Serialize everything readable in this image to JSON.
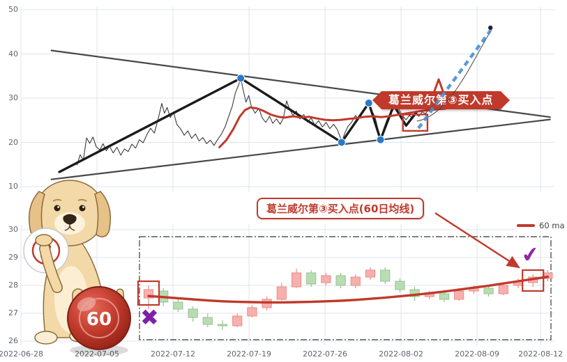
{
  "colors": {
    "accent_red": "#c0392b",
    "candle_up_fill": "#f6b0ae",
    "candle_up_stroke": "#ee8a86",
    "candle_down_fill": "#b9dcb4",
    "candle_down_stroke": "#95c48e",
    "grid": "#dde4ec",
    "price_line": "#3a3a3a",
    "swing_line": "#1b1b1b",
    "trend_line": "#474747",
    "ma_line": "#c0392b",
    "dot_blue": "#2979c8",
    "projection_blue": "#4a90d2",
    "purple": "#8e24aa",
    "axis_text": "#5c6670"
  },
  "x_axis": {
    "dates": [
      "2022-06-28",
      "2022-07-05",
      "2022-07-12",
      "2022-07-19",
      "2022-07-26",
      "2022-08-02",
      "2022-08-09",
      "2022-08-12"
    ]
  },
  "marks": {
    "x_glyph": "✖",
    "check_glyph": "✔"
  },
  "mascot": {
    "ball3_label": "3",
    "ball60_label": "60"
  },
  "chart_data": [
    {
      "type": "line",
      "y_ticks": [
        10,
        20,
        30,
        40,
        50
      ],
      "ylim": [
        8,
        52
      ],
      "banner_text": "葛兰威尔第③买入点",
      "series": [
        {
          "name": "price",
          "points": [
            [
              0.105,
              14.8
            ],
            [
              0.111,
              17.2
            ],
            [
              0.117,
              16.0
            ],
            [
              0.123,
              21.0
            ],
            [
              0.129,
              19.8
            ],
            [
              0.135,
              21.2
            ],
            [
              0.141,
              19.0
            ],
            [
              0.148,
              18.3
            ],
            [
              0.154,
              19.7
            ],
            [
              0.16,
              18.1
            ],
            [
              0.166,
              19.2
            ],
            [
              0.173,
              17.6
            ],
            [
              0.18,
              18.9
            ],
            [
              0.187,
              17.1
            ],
            [
              0.194,
              18.5
            ],
            [
              0.201,
              17.9
            ],
            [
              0.208,
              19.6
            ],
            [
              0.215,
              18.7
            ],
            [
              0.222,
              20.6
            ],
            [
              0.229,
              19.9
            ],
            [
              0.236,
              21.7
            ],
            [
              0.243,
              23.2
            ],
            [
              0.25,
              22.1
            ],
            [
              0.257,
              25.2
            ],
            [
              0.264,
              28.8
            ],
            [
              0.269,
              26.6
            ],
            [
              0.274,
              27.9
            ],
            [
              0.28,
              25.6
            ],
            [
              0.286,
              26.9
            ],
            [
              0.292,
              24.1
            ],
            [
              0.299,
              23.1
            ],
            [
              0.306,
              21.6
            ],
            [
              0.313,
              22.6
            ],
            [
              0.32,
              20.9
            ],
            [
              0.327,
              21.9
            ],
            [
              0.334,
              20.3
            ],
            [
              0.341,
              21.1
            ],
            [
              0.348,
              19.7
            ],
            [
              0.355,
              20.5
            ],
            [
              0.362,
              19.3
            ],
            [
              0.369,
              20.7
            ],
            [
              0.376,
              21.9
            ],
            [
              0.383,
              23.6
            ],
            [
              0.39,
              26.1
            ],
            [
              0.396,
              28.1
            ],
            [
              0.402,
              31.2
            ],
            [
              0.408,
              33.0
            ],
            [
              0.412,
              34.5
            ],
            [
              0.417,
              31.6
            ],
            [
              0.422,
              29.1
            ],
            [
              0.427,
              30.6
            ],
            [
              0.432,
              28.1
            ],
            [
              0.439,
              26.6
            ],
            [
              0.446,
              27.7
            ],
            [
              0.452,
              25.6
            ],
            [
              0.459,
              24.5
            ],
            [
              0.466,
              25.9
            ],
            [
              0.472,
              24.3
            ],
            [
              0.479,
              25.3
            ],
            [
              0.486,
              24.1
            ],
            [
              0.492,
              25.5
            ],
            [
              0.498,
              29.4
            ],
            [
              0.503,
              27.6
            ],
            [
              0.51,
              26.1
            ],
            [
              0.516,
              27.1
            ],
            [
              0.523,
              25.3
            ],
            [
              0.53,
              26.3
            ],
            [
              0.537,
              24.6
            ],
            [
              0.544,
              25.5
            ],
            [
              0.551,
              23.9
            ],
            [
              0.558,
              24.9
            ],
            [
              0.565,
              23.5
            ],
            [
              0.572,
              24.5
            ],
            [
              0.579,
              23.1
            ],
            [
              0.586,
              24.1
            ],
            [
              0.593,
              22.9
            ],
            [
              0.599,
              21.0
            ],
            [
              0.601,
              19.9
            ],
            [
              0.607,
              22.1
            ],
            [
              0.613,
              23.6
            ],
            [
              0.62,
              24.6
            ],
            [
              0.627,
              26.1
            ],
            [
              0.633,
              25.3
            ],
            [
              0.64,
              26.9
            ],
            [
              0.647,
              27.7
            ],
            [
              0.652,
              28.8
            ],
            [
              0.658,
              27.1
            ],
            [
              0.664,
              25.6
            ],
            [
              0.669,
              23.1
            ],
            [
              0.674,
              20.8
            ],
            [
              0.68,
              23.1
            ],
            [
              0.686,
              25.1
            ],
            [
              0.692,
              26.6
            ],
            [
              0.698,
              27.6
            ],
            [
              0.704,
              28.5
            ],
            [
              0.71,
              27.1
            ],
            [
              0.716,
              25.9
            ],
            [
              0.722,
              25.1
            ],
            [
              0.728,
              26.1
            ],
            [
              0.734,
              25.5
            ],
            [
              0.74,
              26.4
            ],
            [
              0.746,
              25.9
            ],
            [
              0.752,
              26.9
            ],
            [
              0.758,
              26.5
            ],
            [
              0.764,
              27.3
            ]
          ]
        },
        {
          "name": "swing-zigzag",
          "points": [
            [
              0.072,
              13.3
            ],
            [
              0.412,
              34.5
            ],
            [
              0.601,
              20.0
            ],
            [
              0.652,
              28.9
            ],
            [
              0.674,
              20.6
            ],
            [
              0.699,
              28.4
            ],
            [
              0.722,
              23.8
            ],
            [
              0.742,
              26.9
            ]
          ]
        },
        {
          "name": "ma",
          "points": [
            [
              0.372,
              18.9
            ],
            [
              0.385,
              20.5
            ],
            [
              0.398,
              23.0
            ],
            [
              0.41,
              25.8
            ],
            [
              0.42,
              27.3
            ],
            [
              0.43,
              27.9
            ],
            [
              0.442,
              27.7
            ],
            [
              0.455,
              27.1
            ],
            [
              0.468,
              26.3
            ],
            [
              0.482,
              25.8
            ],
            [
              0.495,
              25.6
            ],
            [
              0.51,
              25.9
            ],
            [
              0.525,
              25.6
            ],
            [
              0.54,
              25.8
            ],
            [
              0.555,
              25.4
            ],
            [
              0.57,
              25.1
            ],
            [
              0.585,
              25.0
            ],
            [
              0.6,
              25.1
            ],
            [
              0.615,
              25.3
            ],
            [
              0.63,
              25.5
            ],
            [
              0.645,
              25.8
            ],
            [
              0.66,
              25.9
            ],
            [
              0.675,
              25.7
            ],
            [
              0.69,
              25.9
            ],
            [
              0.705,
              26.2
            ],
            [
              0.72,
              26.5
            ],
            [
              0.735,
              26.8
            ],
            [
              0.75,
              27.1
            ],
            [
              0.765,
              27.3
            ],
            [
              0.78,
              27.5
            ],
            [
              0.795,
              27.6
            ]
          ]
        },
        {
          "name": "trendline-upper",
          "points": [
            [
              0.056,
              40.8
            ],
            [
              0.993,
              25.7
            ]
          ]
        },
        {
          "name": "trendline-lower",
          "points": [
            [
              0.056,
              11.6
            ],
            [
              0.993,
              25.2
            ]
          ]
        },
        {
          "name": "projection-curve",
          "points": [
            [
              0.742,
              24.8
            ],
            [
              0.882,
              45.5
            ]
          ]
        }
      ],
      "swing_dots": [
        [
          0.412,
          34.5
        ],
        [
          0.601,
          20.0
        ],
        [
          0.652,
          28.9
        ],
        [
          0.674,
          20.6
        ]
      ],
      "buy_box": {
        "x": [
          0.716,
          0.762
        ],
        "y": [
          22.6,
          26.3
        ]
      },
      "projection_arrow": {
        "from": [
          0.745,
          23.2
        ],
        "to": [
          0.88,
          45.3
        ]
      }
    },
    {
      "type": "candlestick",
      "y_ticks": [
        26,
        27,
        28,
        29,
        30
      ],
      "ylim": [
        25.9,
        30.3
      ],
      "legend": [
        {
          "label": "60 ma",
          "color": "#c0392b"
        }
      ],
      "annotation_text": "葛兰威尔第③买入点(60日均线)",
      "candles": [
        [
          27.55,
          28.0,
          27.15,
          27.85
        ],
        [
          27.8,
          27.9,
          27.25,
          27.4
        ],
        [
          27.4,
          27.55,
          27.05,
          27.15
        ],
        [
          27.15,
          27.25,
          26.7,
          26.85
        ],
        [
          26.85,
          27.0,
          26.5,
          26.6
        ],
        [
          26.6,
          26.75,
          26.4,
          26.55
        ],
        [
          26.55,
          27.0,
          26.5,
          26.9
        ],
        [
          26.9,
          27.3,
          26.85,
          27.2
        ],
        [
          27.2,
          27.6,
          27.1,
          27.5
        ],
        [
          27.5,
          28.1,
          27.45,
          27.95
        ],
        [
          27.95,
          28.6,
          27.9,
          28.45
        ],
        [
          28.45,
          28.55,
          27.95,
          28.05
        ],
        [
          28.1,
          28.45,
          28.0,
          28.35
        ],
        [
          28.35,
          28.45,
          27.9,
          28.0
        ],
        [
          28.0,
          28.4,
          27.9,
          28.3
        ],
        [
          28.3,
          28.65,
          28.2,
          28.55
        ],
        [
          28.55,
          28.65,
          28.05,
          28.15
        ],
        [
          28.15,
          28.25,
          27.75,
          27.85
        ],
        [
          27.85,
          27.95,
          27.45,
          27.6
        ],
        [
          27.6,
          27.8,
          27.5,
          27.7
        ],
        [
          27.7,
          27.85,
          27.4,
          27.5
        ],
        [
          27.5,
          27.9,
          27.45,
          27.8
        ],
        [
          27.8,
          28.0,
          27.7,
          27.9
        ],
        [
          27.9,
          28.0,
          27.6,
          27.7
        ],
        [
          27.7,
          28.1,
          27.65,
          28.0
        ],
        [
          28.0,
          28.25,
          27.9,
          28.15
        ],
        [
          28.1,
          28.4,
          27.95,
          28.3
        ],
        [
          28.25,
          28.55,
          28.15,
          28.45
        ]
      ],
      "ma60": [
        27.62,
        27.58,
        27.54,
        27.5,
        27.46,
        27.43,
        27.41,
        27.4,
        27.39,
        27.39,
        27.4,
        27.41,
        27.43,
        27.45,
        27.48,
        27.52,
        27.56,
        27.61,
        27.66,
        27.72,
        27.78,
        27.85,
        27.92,
        27.99,
        28.07,
        28.15,
        28.23,
        28.31
      ],
      "highlight_boxes": [
        {
          "candle_index": 0,
          "v_top": 28.15,
          "v_bottom": 27.3
        },
        {
          "candle_index": 26,
          "v_top": 28.55,
          "v_bottom": 27.8
        }
      ]
    }
  ]
}
